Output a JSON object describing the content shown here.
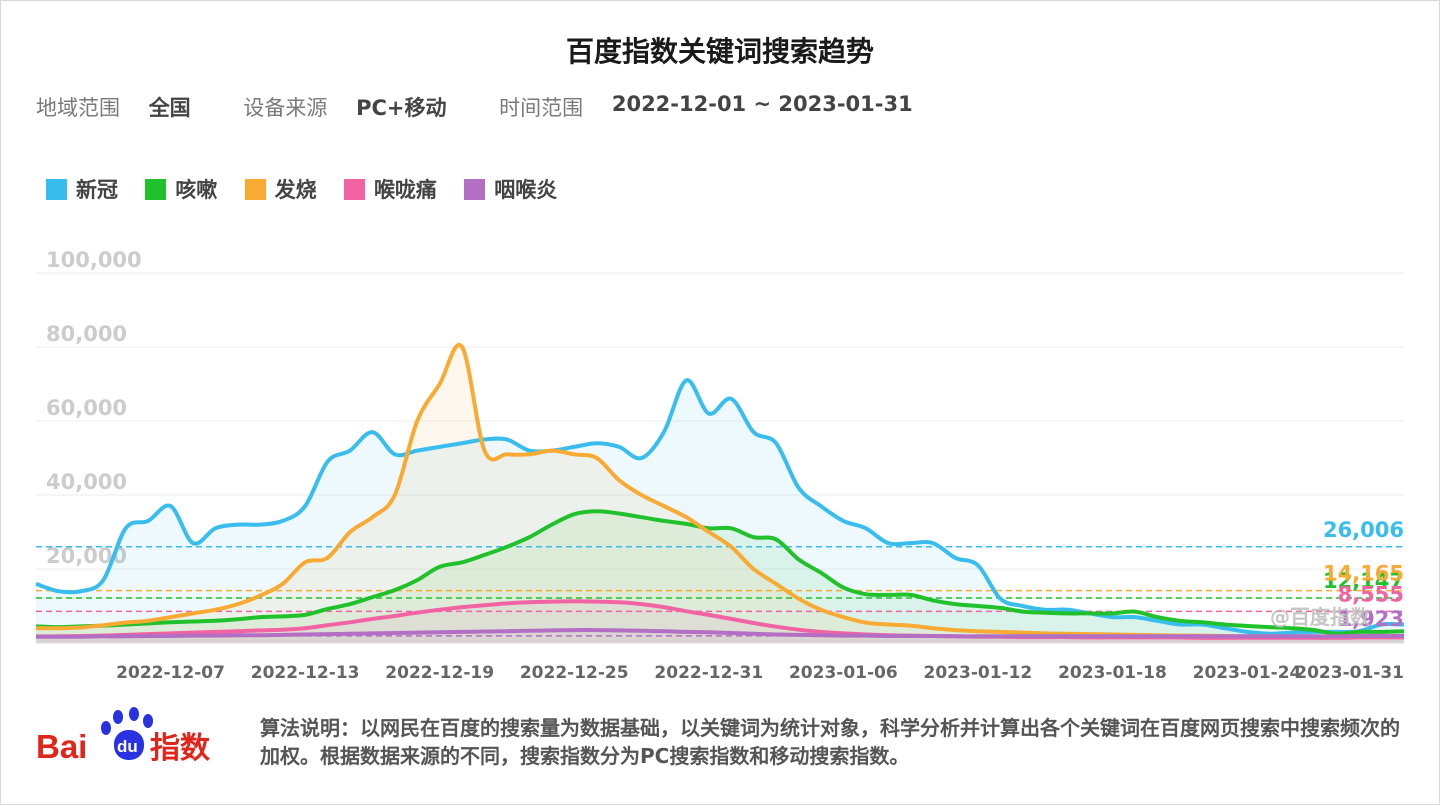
{
  "title": "百度指数关键词搜索趋势",
  "filters": [
    {
      "label": "地域范围",
      "value": "全国"
    },
    {
      "label": "设备来源",
      "value": "PC+移动"
    },
    {
      "label": "时间范围",
      "value": "2022-12-01 ~ 2023-01-31"
    }
  ],
  "watermark": "@百度指数",
  "footer": {
    "text": "算法说明：以网民在百度的搜索量为数据基础，以关键词为统计对象，科学分析并计算出各个关键词在百度网页搜索中搜索频次的加权。根据数据来源的不同，搜索指数分为PC搜索指数和移动搜索指数。",
    "logo_text": "Bai指数",
    "logo_du": "du"
  },
  "chart_data": {
    "type": "area",
    "title": "百度指数关键词搜索趋势",
    "xlabel": "",
    "ylabel": "",
    "ylim": [
      0,
      100000
    ],
    "yticks": [
      20000,
      40000,
      60000,
      80000,
      100000
    ],
    "ytick_labels": [
      "20,000",
      "40,000",
      "60,000",
      "80,000",
      "100,000"
    ],
    "grid": true,
    "legend_position": "top-left",
    "x_start": "2022-12-01",
    "x_end": "2023-01-31",
    "x_tick_labels": [
      "2022-12-07",
      "2022-12-13",
      "2022-12-19",
      "2022-12-25",
      "2022-12-31",
      "2023-01-06",
      "2023-01-12",
      "2023-01-18",
      "2023-01-24",
      "2023-01-31"
    ],
    "series": [
      {
        "name": "新冠",
        "color": "#38bdee",
        "last_label": "26,006",
        "reference_line": 26006,
        "values": [
          16000,
          14000,
          14000,
          17000,
          31000,
          33000,
          37000,
          27000,
          31000,
          32000,
          32000,
          33000,
          37000,
          49000,
          52000,
          57000,
          51000,
          52000,
          53000,
          54000,
          55000,
          55000,
          52000,
          52000,
          53000,
          54000,
          53000,
          50000,
          57000,
          71000,
          62000,
          66000,
          57000,
          54000,
          42000,
          37000,
          33000,
          31000,
          27000,
          27000,
          27000,
          23000,
          21000,
          12000,
          10000,
          9000,
          9000,
          8000,
          7000,
          7000,
          6000,
          5000,
          5000,
          4000,
          3000,
          2500,
          2800,
          3000,
          3000,
          3200,
          5000,
          5000
        ]
      },
      {
        "name": "咳嗽",
        "color": "#21c12b",
        "last_label": "12,147",
        "reference_line": 12147,
        "values": [
          4500,
          4300,
          4500,
          4700,
          5000,
          5300,
          5600,
          5800,
          6000,
          6400,
          7000,
          7200,
          7600,
          9200,
          10500,
          12400,
          14300,
          17000,
          20600,
          21800,
          23800,
          26000,
          28600,
          32000,
          34800,
          35600,
          35000,
          34000,
          33000,
          32200,
          31000,
          31000,
          28600,
          28000,
          22600,
          19000,
          15000,
          13200,
          13000,
          13000,
          11500,
          10500,
          10000,
          9500,
          8500,
          8200,
          8000,
          8000,
          8000,
          8500,
          7000,
          6000,
          5600,
          5000,
          4600,
          4300,
          4000,
          3500,
          2500,
          3000,
          3000,
          3200
        ]
      },
      {
        "name": "发烧",
        "color": "#f8aa33",
        "last_label": "14,165",
        "reference_line": 14165,
        "values": [
          4000,
          4000,
          4200,
          4800,
          5500,
          6000,
          7000,
          8000,
          9000,
          10500,
          12800,
          16000,
          21800,
          23000,
          30000,
          34000,
          40000,
          60000,
          70000,
          80000,
          52000,
          51000,
          51000,
          52000,
          51000,
          50000,
          44000,
          40000,
          37000,
          34000,
          30000,
          26000,
          20000,
          16000,
          12000,
          9000,
          7000,
          5500,
          5000,
          4700,
          4000,
          3500,
          3200,
          3000,
          2800,
          2600,
          2500,
          2400,
          2300,
          2200,
          2100,
          2000,
          2000,
          1900,
          1800,
          1800,
          1700,
          1700,
          1600,
          1600,
          1600,
          1600
        ]
      },
      {
        "name": "喉咙痛",
        "color": "#f263a3",
        "last_label": "8,555",
        "reference_line": 8555,
        "values": [
          1800,
          1800,
          1900,
          2000,
          2200,
          2400,
          2600,
          2800,
          3000,
          3200,
          3400,
          3600,
          4000,
          4800,
          5600,
          6500,
          7300,
          8200,
          9000,
          9700,
          10200,
          10700,
          11000,
          11200,
          11300,
          11200,
          11000,
          10500,
          9700,
          8600,
          7600,
          6500,
          5400,
          4400,
          3600,
          3000,
          2600,
          2300,
          2100,
          2000,
          1900,
          1800,
          1700,
          1700,
          1600,
          1600,
          1600,
          1500,
          1500,
          1500,
          1500,
          1500,
          1400,
          1400,
          1400,
          1400,
          1400,
          1400,
          1400,
          1500,
          1500,
          1500
        ]
      },
      {
        "name": "咽喉炎",
        "color": "#b36fc4",
        "last_label": "1,923",
        "reference_line": 1923,
        "values": [
          1700,
          1700,
          1700,
          1800,
          1800,
          1900,
          1900,
          2000,
          2000,
          2100,
          2100,
          2200,
          2300,
          2400,
          2500,
          2600,
          2700,
          2800,
          2900,
          3000,
          3100,
          3200,
          3300,
          3400,
          3500,
          3500,
          3400,
          3300,
          3200,
          3000,
          2900,
          2700,
          2500,
          2300,
          2200,
          2100,
          2000,
          2000,
          1900,
          1900,
          1900,
          1800,
          1800,
          1800,
          1800,
          1800,
          1800,
          1800,
          1800,
          1800,
          1800,
          1800,
          1800,
          1800,
          1800,
          1800,
          1800,
          1800,
          1800,
          1900,
          1900,
          1900
        ]
      }
    ]
  }
}
